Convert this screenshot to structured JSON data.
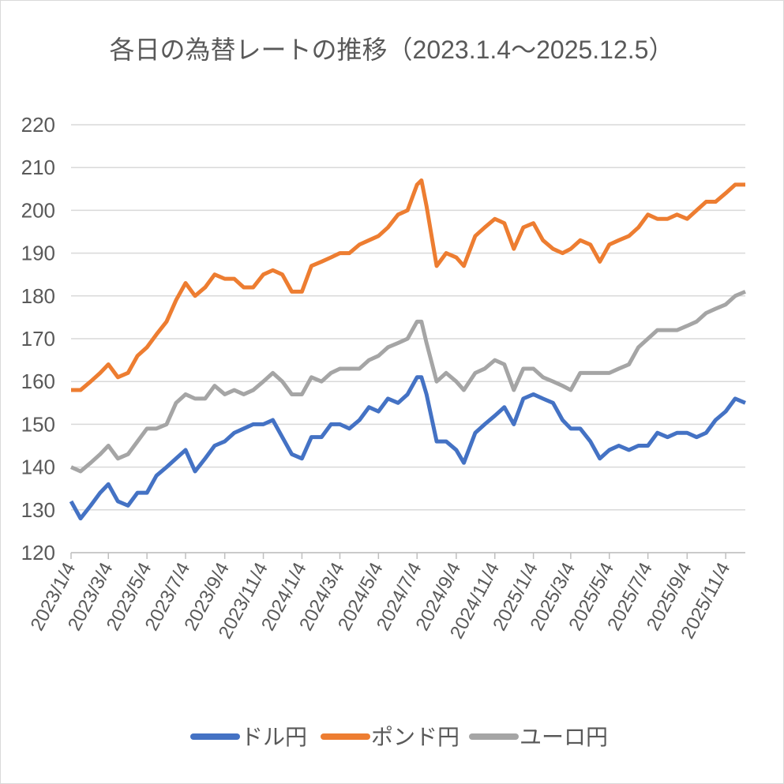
{
  "chart_data": {
    "type": "line",
    "title": "各日の為替レートの推移（2023.1.4～2025.12.5）",
    "x": [
      "2023/1/4",
      "2023/1/19",
      "2023/2/4",
      "2023/2/19",
      "2023/3/4",
      "2023/3/19",
      "2023/4/4",
      "2023/4/19",
      "2023/5/4",
      "2023/5/19",
      "2023/6/4",
      "2023/6/19",
      "2023/7/4",
      "2023/7/19",
      "2023/8/4",
      "2023/8/19",
      "2023/9/4",
      "2023/9/19",
      "2023/10/4",
      "2023/10/19",
      "2023/11/4",
      "2023/11/19",
      "2023/12/4",
      "2023/12/19",
      "2024/1/4",
      "2024/1/19",
      "2024/2/4",
      "2024/2/19",
      "2024/3/4",
      "2024/3/19",
      "2024/4/4",
      "2024/4/19",
      "2024/5/4",
      "2024/5/19",
      "2024/6/4",
      "2024/6/19",
      "2024/7/4",
      "2024/7/11",
      "2024/7/19",
      "2024/8/4",
      "2024/8/19",
      "2024/9/4",
      "2024/9/16",
      "2024/10/4",
      "2024/10/19",
      "2024/11/4",
      "2024/11/19",
      "2024/12/4",
      "2024/12/19",
      "2025/1/4",
      "2025/1/19",
      "2025/2/4",
      "2025/2/19",
      "2025/3/4",
      "2025/3/19",
      "2025/4/4",
      "2025/4/19",
      "2025/5/4",
      "2025/5/19",
      "2025/6/4",
      "2025/6/19",
      "2025/7/4",
      "2025/7/19",
      "2025/8/4",
      "2025/8/19",
      "2025/9/4",
      "2025/9/19",
      "2025/10/4",
      "2025/10/19",
      "2025/11/4",
      "2025/11/19",
      "2025/12/5"
    ],
    "series": [
      {
        "name": "ドル円",
        "color": "#4472c4",
        "values": [
          132,
          128,
          131,
          134,
          136,
          132,
          131,
          134,
          134,
          138,
          140,
          142,
          144,
          139,
          142,
          145,
          146,
          148,
          149,
          150,
          150,
          151,
          147,
          143,
          142,
          147,
          147,
          150,
          150,
          149,
          151,
          154,
          153,
          156,
          155,
          157,
          161,
          161,
          157,
          146,
          146,
          144,
          141,
          148,
          150,
          152,
          154,
          150,
          156,
          157,
          156,
          155,
          151,
          149,
          149,
          146,
          142,
          144,
          145,
          144,
          145,
          145,
          148,
          147,
          148,
          148,
          147,
          148,
          151,
          153,
          156,
          155
        ]
      },
      {
        "name": "ポンド円",
        "color": "#ed7d31",
        "values": [
          158,
          158,
          160,
          162,
          164,
          161,
          162,
          166,
          168,
          171,
          174,
          179,
          183,
          180,
          182,
          185,
          184,
          184,
          182,
          182,
          185,
          186,
          185,
          181,
          181,
          187,
          188,
          189,
          190,
          190,
          192,
          193,
          194,
          196,
          199,
          200,
          206,
          207,
          201,
          187,
          190,
          189,
          187,
          194,
          196,
          198,
          197,
          191,
          196,
          197,
          193,
          191,
          190,
          191,
          193,
          192,
          188,
          192,
          193,
          194,
          196,
          199,
          198,
          198,
          199,
          198,
          200,
          202,
          202,
          204,
          206,
          206
        ]
      },
      {
        "name": "ユーロ円",
        "color": "#a5a5a5",
        "values": [
          140,
          139,
          141,
          143,
          145,
          142,
          143,
          146,
          149,
          149,
          150,
          155,
          157,
          156,
          156,
          159,
          157,
          158,
          157,
          158,
          160,
          162,
          160,
          157,
          157,
          161,
          160,
          162,
          163,
          163,
          163,
          165,
          166,
          168,
          169,
          170,
          174,
          174,
          169,
          160,
          162,
          160,
          158,
          162,
          163,
          165,
          164,
          158,
          163,
          163,
          161,
          160,
          159,
          158,
          162,
          162,
          162,
          162,
          163,
          164,
          168,
          170,
          172,
          172,
          172,
          173,
          174,
          176,
          177,
          178,
          180,
          181
        ]
      }
    ],
    "xlim": [
      "2023/1/4",
      "2025/12/5"
    ],
    "xticks": [
      "2023/1/4",
      "2023/3/4",
      "2023/5/4",
      "2023/7/4",
      "2023/9/4",
      "2023/11/4",
      "2024/1/4",
      "2024/3/4",
      "2024/5/4",
      "2024/7/4",
      "2024/9/4",
      "2024/11/4",
      "2025/1/4",
      "2025/3/4",
      "2025/5/4",
      "2025/7/4",
      "2025/9/4",
      "2025/11/4"
    ],
    "ylim": [
      120,
      220
    ],
    "yticks": [
      120,
      130,
      140,
      150,
      160,
      170,
      180,
      190,
      200,
      210,
      220
    ],
    "grid": true,
    "legend": "bottom"
  }
}
